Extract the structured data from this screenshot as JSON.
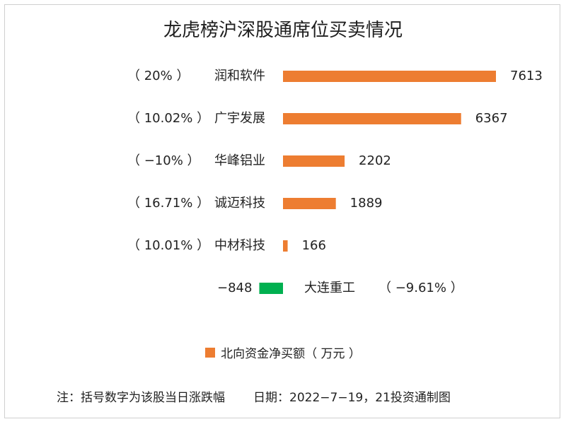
{
  "chart_data": {
    "type": "bar",
    "orientation": "horizontal",
    "title": "龙虎榜沪深股通席位买卖情况",
    "categories": [
      "润和软件",
      "广宇发展",
      "华峰铝业",
      "诚迈科技",
      "中材科技",
      "大连重工"
    ],
    "values": [
      7613,
      6367,
      2202,
      1889,
      166,
      -848
    ],
    "pct_labels": [
      "（ 20% ）",
      "（ 10.02% ）",
      "（ −10% ）",
      "（ 16.71% ）",
      "（ 10.01% ）",
      "（ −9.61% ）"
    ],
    "value_labels": [
      "7613",
      "6367",
      "2202",
      "1889",
      "166",
      "−848"
    ],
    "positive_color": "#ed7d31",
    "negative_color": "#00b050",
    "series": [
      {
        "name": "北向资金净买额（ 万元 ）",
        "values": [
          7613,
          6367,
          2202,
          1889,
          166,
          -848
        ]
      }
    ],
    "legend_position": "bottom",
    "grid": false
  },
  "legend": {
    "label": "北向资金净买额（ 万元 ）"
  },
  "footnote": {
    "note": "注：括号数字为该股当日涨跌幅",
    "date": "日期：2022−7−19，21投资通制图"
  }
}
